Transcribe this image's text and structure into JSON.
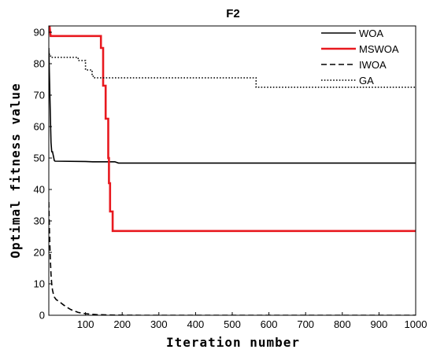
{
  "chart_data": {
    "type": "line",
    "title": "F2",
    "xlabel": "Iteration number",
    "ylabel": "Optimal fitness value",
    "xlim": [
      0,
      1000
    ],
    "ylim": [
      0,
      92
    ],
    "xticks": [
      100,
      200,
      300,
      400,
      500,
      600,
      700,
      800,
      900,
      1000
    ],
    "yticks": [
      0,
      10,
      20,
      30,
      40,
      50,
      60,
      70,
      80,
      90
    ],
    "grid": false,
    "legend_position": "top-right",
    "series": [
      {
        "name": "WOA",
        "color": "#000000",
        "style": "solid",
        "width": 1.6,
        "x": [
          0,
          2,
          4,
          6,
          8,
          10,
          15,
          17,
          100,
          120,
          180,
          190,
          1000
        ],
        "y": [
          85,
          75,
          64,
          55,
          52,
          52,
          49.2,
          49,
          48.9,
          48.8,
          48.8,
          48.4,
          48.4
        ]
      },
      {
        "name": "MSWOA",
        "color": "#e8191f",
        "style": "solid",
        "width": 2.6,
        "x": [
          0,
          2,
          5,
          142,
          142,
          148,
          148,
          155,
          155,
          162,
          162,
          164,
          164,
          167,
          167,
          174,
          174,
          1000
        ],
        "y": [
          92,
          92,
          88.8,
          88.8,
          85,
          85,
          73,
          73,
          62.5,
          62.5,
          50,
          50,
          42,
          42,
          33,
          33,
          26.8,
          26.8
        ]
      },
      {
        "name": "IWOA",
        "color": "#000000",
        "style": "dashed",
        "width": 1.6,
        "x": [
          0,
          2,
          4,
          6,
          8,
          10,
          12,
          15,
          20,
          30,
          40,
          50,
          60,
          80,
          100,
          130,
          180,
          250,
          400,
          1000
        ],
        "y": [
          36,
          26,
          18,
          13,
          10,
          8,
          7,
          5.8,
          5,
          4.2,
          3.3,
          2.5,
          1.8,
          0.9,
          0.5,
          0.2,
          0.05,
          0,
          0,
          0
        ]
      },
      {
        "name": "GA",
        "color": "#000000",
        "style": "dotted",
        "width": 1.6,
        "x": [
          0,
          5,
          5,
          80,
          80,
          100,
          100,
          118,
          118,
          125,
          125,
          565,
          565,
          1000
        ],
        "y": [
          83,
          83,
          82,
          82,
          81,
          81,
          78,
          78,
          76,
          76,
          75.5,
          75.5,
          72.5,
          72.5
        ]
      }
    ]
  }
}
